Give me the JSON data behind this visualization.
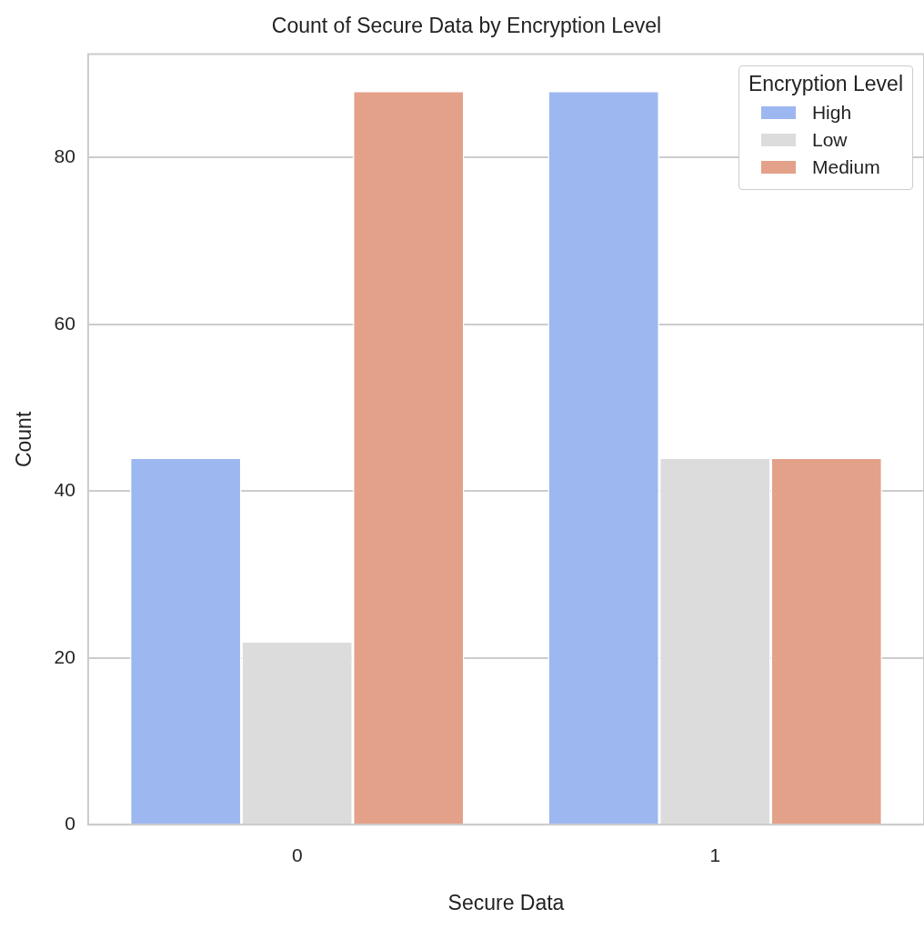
{
  "chart_data": {
    "type": "bar",
    "title": "Count of Secure Data by Encryption Level",
    "xlabel": "Secure Data",
    "ylabel": "Count",
    "legend_title": "Encryption Level",
    "categories": [
      "0",
      "1"
    ],
    "series": [
      {
        "name": "High",
        "color": "#9db7f0",
        "values": [
          44,
          88
        ]
      },
      {
        "name": "Low",
        "color": "#dcdcdc",
        "values": [
          22,
          44
        ]
      },
      {
        "name": "Medium",
        "color": "#e4a189",
        "values": [
          88,
          44
        ]
      }
    ],
    "ylim": [
      0,
      92.4
    ],
    "yticks": [
      0,
      20,
      40,
      60,
      80
    ],
    "grid": "y",
    "legend": "top right"
  }
}
